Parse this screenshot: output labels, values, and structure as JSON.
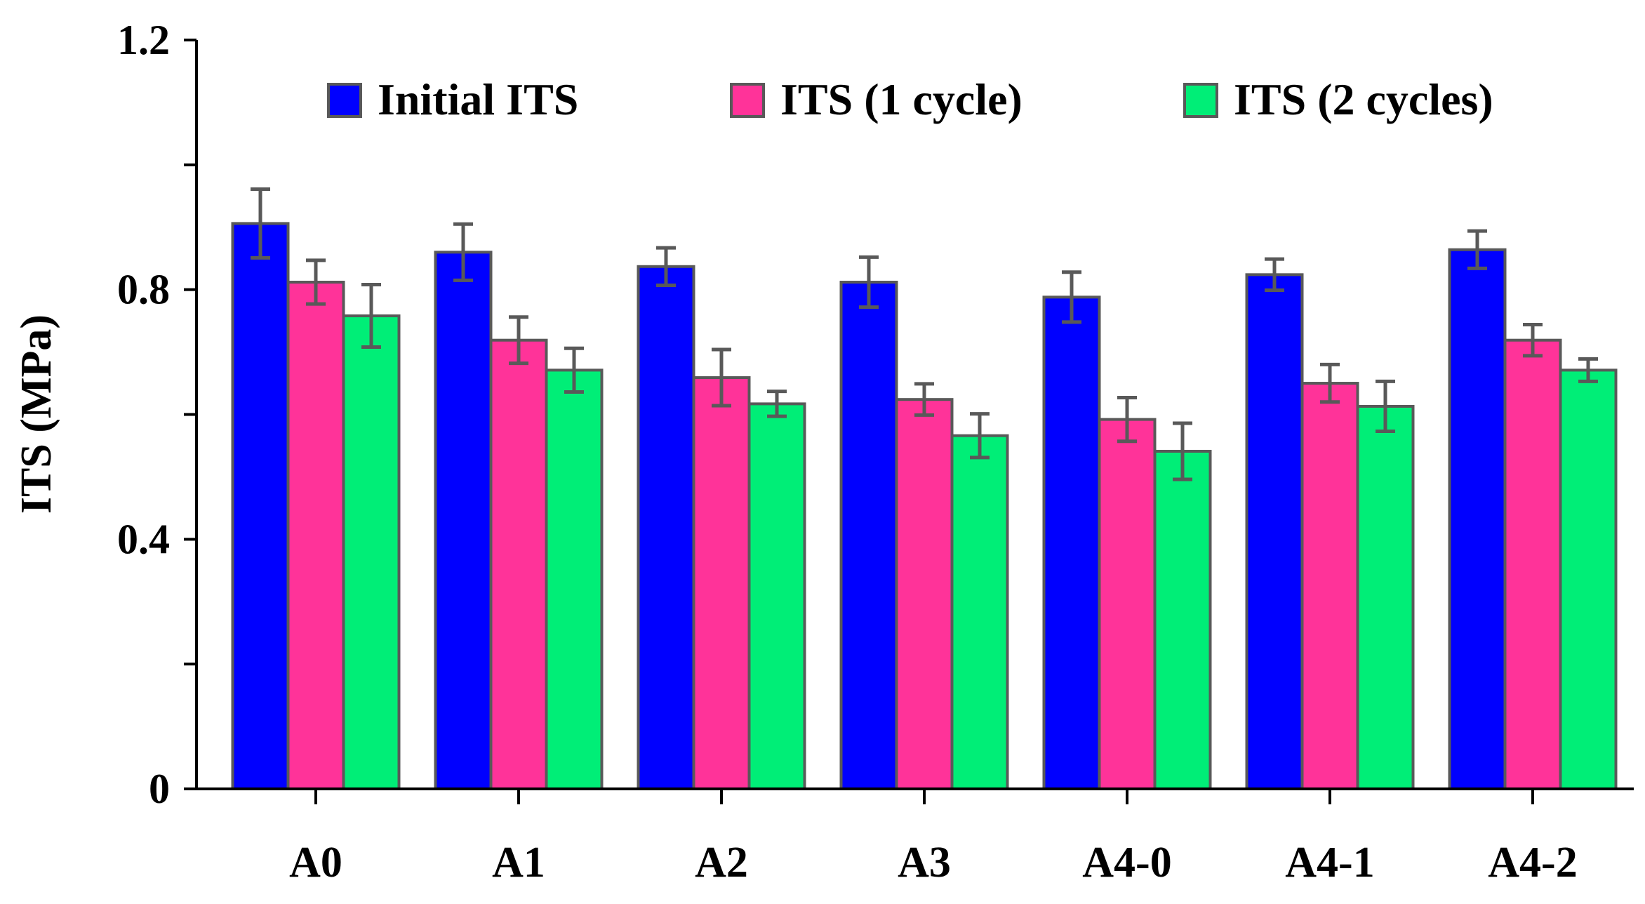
{
  "chart_data": {
    "type": "bar",
    "title": "",
    "xlabel": "",
    "ylabel": "ITS (MPa)",
    "ylim": [
      0,
      1.2
    ],
    "yticks": [
      "0",
      "0.4",
      "0.8",
      "1.2"
    ],
    "minor_yticks": [
      0.2,
      0.6,
      1.0
    ],
    "grid": false,
    "legend_position": "top",
    "categories": [
      "A0",
      "A1",
      "A2",
      "A3",
      "A4-0",
      "A4-1",
      "A4-2"
    ],
    "series": [
      {
        "name": "Initial ITS",
        "color": "#0000ff",
        "values": [
          0.906,
          0.86,
          0.837,
          0.812,
          0.788,
          0.824,
          0.864
        ],
        "errors": [
          0.055,
          0.045,
          0.03,
          0.04,
          0.04,
          0.025,
          0.03
        ]
      },
      {
        "name": "ITS (1 cycle)",
        "color": "#ff3399",
        "values": [
          0.812,
          0.719,
          0.659,
          0.624,
          0.592,
          0.65,
          0.719
        ],
        "errors": [
          0.035,
          0.037,
          0.045,
          0.025,
          0.035,
          0.03,
          0.025
        ]
      },
      {
        "name": "ITS (2 cycles)",
        "color": "#00ee77",
        "values": [
          0.758,
          0.671,
          0.617,
          0.566,
          0.541,
          0.613,
          0.671
        ],
        "errors": [
          0.05,
          0.035,
          0.02,
          0.035,
          0.045,
          0.04,
          0.018
        ]
      }
    ]
  }
}
